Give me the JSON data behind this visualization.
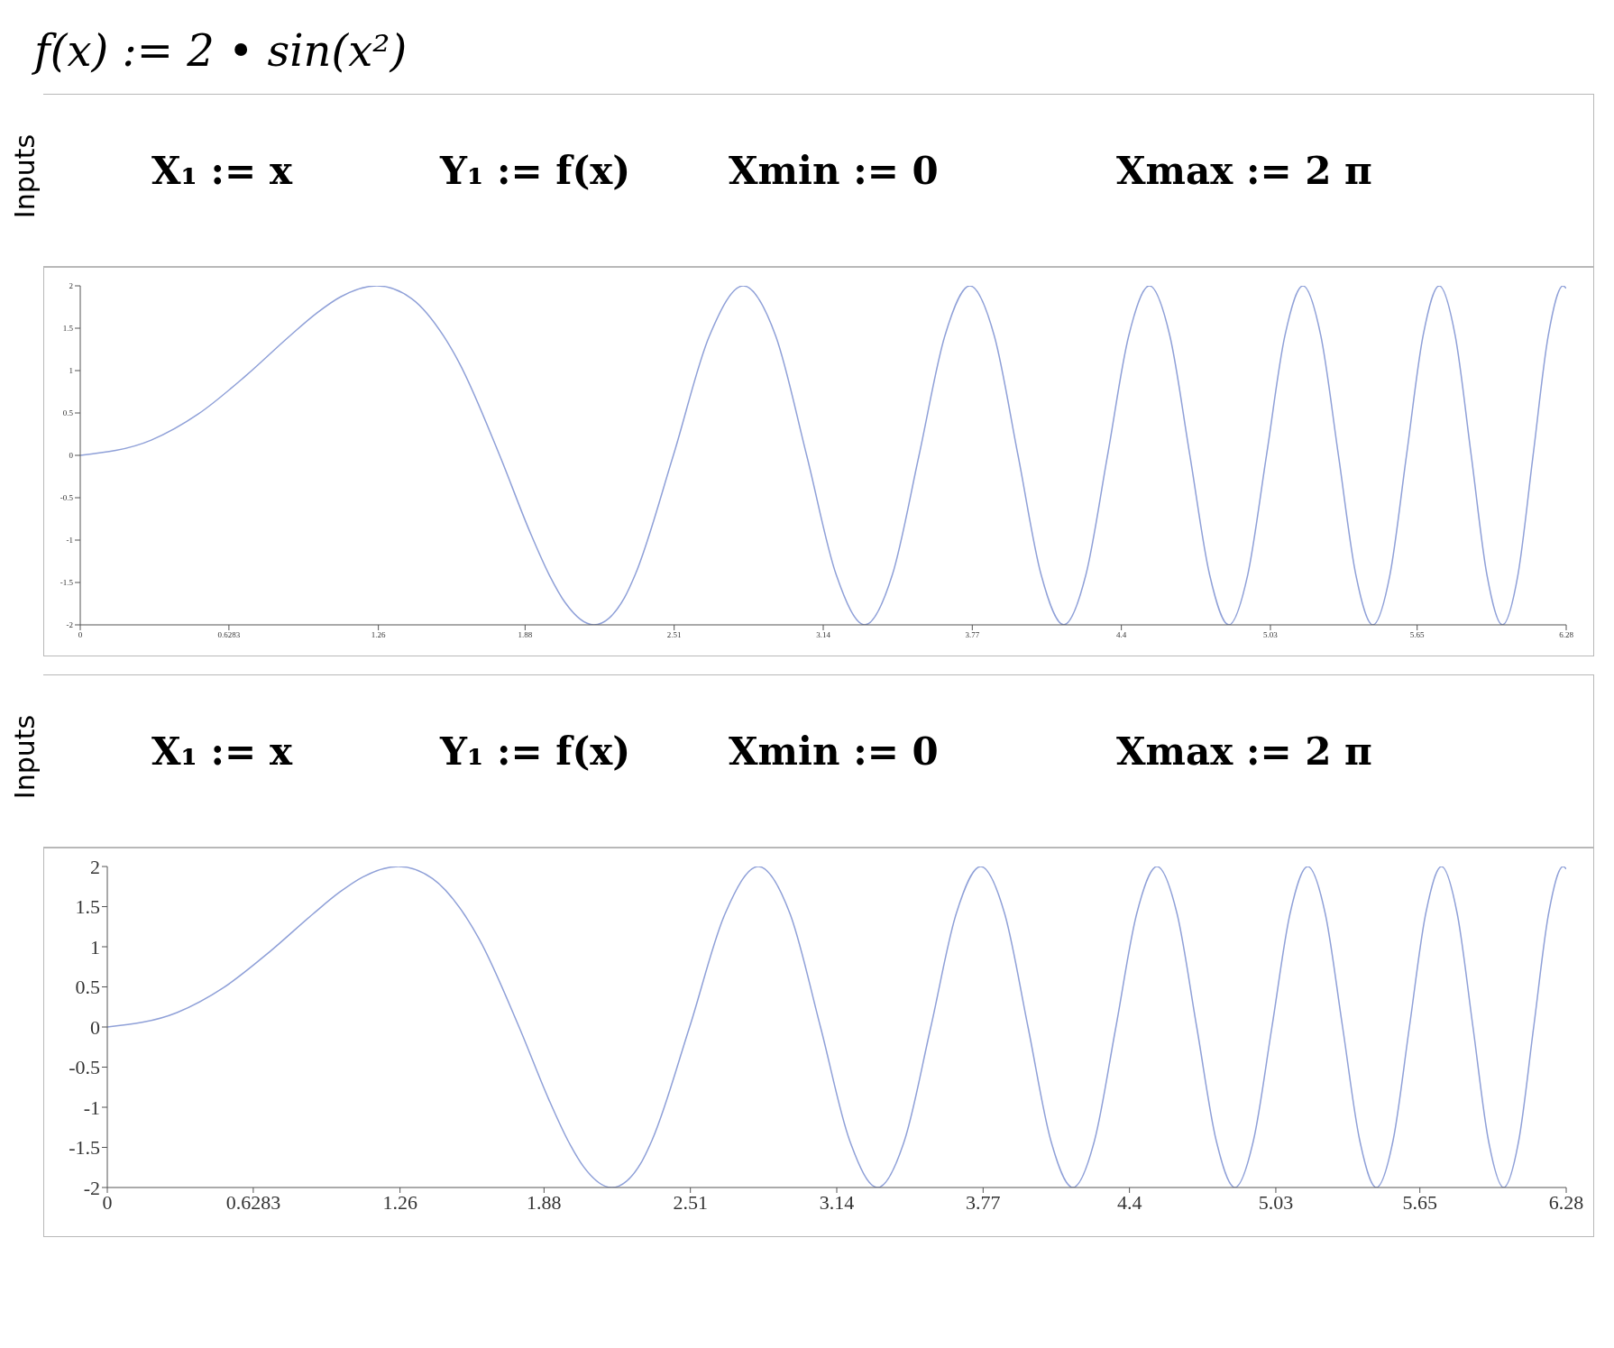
{
  "chart_data": [
    {
      "type": "line",
      "title": "f(x) := 2 • sin(x²)",
      "annotations": [
        "Inputs",
        "X₁ := x",
        "Y₁ := f(x)",
        "Xmin := 0",
        "Xmax := 2 π"
      ],
      "xlim": [
        0,
        6.28
      ],
      "ylim": [
        -2,
        2
      ],
      "xticks": [
        0,
        0.6283,
        1.26,
        1.88,
        2.51,
        3.14,
        3.77,
        4.4,
        5.03,
        5.65,
        6.28
      ],
      "yticks": [
        -2,
        -1.5,
        -1,
        -0.5,
        0,
        0.5,
        1,
        1.5,
        2
      ],
      "grid": false,
      "marker": "none",
      "line_style": "solid",
      "series": [
        {
          "color": "#8fa0d8",
          "x": [
            0,
            0.3,
            0.5,
            0.7,
            0.886,
            1.0,
            1.1,
            1.2533,
            1.4,
            1.535,
            1.6,
            1.7725,
            1.9,
            1.982,
            2.05,
            2.1708,
            2.3,
            2.345,
            2.5066,
            2.659,
            2.8025,
            2.939,
            3.07,
            3.195,
            3.316,
            3.432,
            3.5449,
            3.654,
            3.7599,
            3.863,
            3.9633,
            4.061,
            4.1568,
            4.25,
            4.3416,
            4.431,
            4.5189,
            4.605,
            4.6895,
            4.773,
            4.8541,
            4.934,
            5.0133,
            5.091,
            5.1676,
            5.243,
            5.3174,
            5.391,
            5.4631,
            5.535,
            5.605,
            5.675,
            5.7434,
            5.811,
            5.8786,
            5.945,
            6.0107,
            6.076,
            6.14,
            6.204,
            6.2666,
            6.28
          ],
          "values": [
            0,
            0.18,
            0.49,
            0.94,
            1.41,
            1.68,
            1.87,
            2,
            1.85,
            1.41,
            1.1,
            0,
            -0.9,
            -1.41,
            -1.74,
            -2,
            -1.68,
            -1.41,
            0,
            1.41,
            2,
            1.41,
            0,
            -1.41,
            -2,
            -1.41,
            0,
            1.41,
            2,
            1.41,
            0,
            -1.41,
            -2,
            -1.41,
            0,
            1.41,
            2,
            1.41,
            0,
            -1.41,
            -2,
            -1.41,
            0,
            1.41,
            2,
            1.41,
            0,
            -1.41,
            -2,
            -1.41,
            0,
            1.41,
            2,
            1.41,
            0,
            -1.41,
            -2,
            -1.41,
            0,
            1.41,
            2,
            1.97
          ]
        }
      ]
    },
    {
      "type": "line",
      "annotations": [
        "Inputs",
        "X₁ := x",
        "Y₁ := f(x)",
        "Xmin := 0",
        "Xmax := 2 π"
      ],
      "xlim": [
        0,
        6.28
      ],
      "ylim": [
        -2,
        2
      ],
      "xticks": [
        0,
        0.6283,
        1.26,
        1.88,
        2.51,
        3.14,
        3.77,
        4.4,
        5.03,
        5.65,
        6.28
      ],
      "yticks": [
        -2,
        -1.5,
        -1,
        -0.5,
        0,
        0.5,
        1,
        1.5,
        2
      ],
      "grid": false,
      "marker": "none",
      "line_style": "solid",
      "series": [
        {
          "color": "#8fa0d8",
          "x": [
            0,
            0.3,
            0.5,
            0.7,
            0.886,
            1.0,
            1.1,
            1.2533,
            1.4,
            1.535,
            1.6,
            1.7725,
            1.9,
            1.982,
            2.05,
            2.1708,
            2.3,
            2.345,
            2.5066,
            2.659,
            2.8025,
            2.939,
            3.07,
            3.195,
            3.316,
            3.432,
            3.5449,
            3.654,
            3.7599,
            3.863,
            3.9633,
            4.061,
            4.1568,
            4.25,
            4.3416,
            4.431,
            4.5189,
            4.605,
            4.6895,
            4.773,
            4.8541,
            4.934,
            5.0133,
            5.091,
            5.1676,
            5.243,
            5.3174,
            5.391,
            5.4631,
            5.535,
            5.605,
            5.675,
            5.7434,
            5.811,
            5.8786,
            5.945,
            6.0107,
            6.076,
            6.14,
            6.204,
            6.2666,
            6.28
          ],
          "values": [
            0,
            0.18,
            0.49,
            0.94,
            1.41,
            1.68,
            1.87,
            2,
            1.85,
            1.41,
            1.1,
            0,
            -0.9,
            -1.41,
            -1.74,
            -2,
            -1.68,
            -1.41,
            0,
            1.41,
            2,
            1.41,
            0,
            -1.41,
            -2,
            -1.41,
            0,
            1.41,
            2,
            1.41,
            0,
            -1.41,
            -2,
            -1.41,
            0,
            1.41,
            2,
            1.41,
            0,
            -1.41,
            -2,
            -1.41,
            0,
            1.41,
            2,
            1.41,
            0,
            -1.41,
            -2,
            -1.41,
            0,
            1.41,
            2,
            1.41,
            0,
            -1.41,
            -2,
            -1.41,
            0,
            1.41,
            2,
            1.97
          ]
        }
      ]
    }
  ]
}
